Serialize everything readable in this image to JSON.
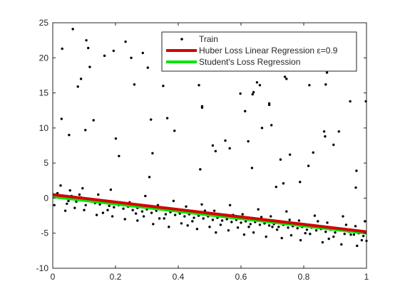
{
  "chart_data": {
    "type": "scatter",
    "title": "",
    "xlabel": "",
    "ylabel": "",
    "xlim": [
      0,
      1
    ],
    "ylim": [
      -10,
      25
    ],
    "xticks": [
      0,
      0.2,
      0.4,
      0.6,
      0.8,
      1
    ],
    "yticks": [
      -10,
      -5,
      0,
      5,
      10,
      15,
      20,
      25
    ],
    "xtick_labels": [
      "0",
      "0.2",
      "0.4",
      "0.6",
      "0.8",
      "1"
    ],
    "ytick_labels": [
      "-10",
      "-5",
      "0",
      "5",
      "10",
      "15",
      "20",
      "25"
    ],
    "grid": false,
    "legend_position": "top-right",
    "series": [
      {
        "name": "Train",
        "kind": "scatter",
        "color": "#000000",
        "x": [
          0.064,
          0.03,
          0.107,
          0.113,
          0.09,
          0.165,
          0.194,
          0.25,
          0.232,
          0.287,
          0.118,
          0.08,
          0.352,
          0.303,
          0.26,
          0.388,
          0.476,
          0.466,
          0.476,
          0.637,
          0.623,
          0.66,
          0.69,
          0.745,
          0.74,
          0.865,
          0.868,
          0.028,
          0.052,
          0.104,
          0.13,
          0.201,
          0.313,
          0.318,
          0.365,
          0.51,
          0.519,
          0.55,
          0.564,
          0.613,
          0.635,
          0.651,
          0.667,
          0.69,
          0.697,
          0.726,
          0.756,
          0.788,
          0.815,
          0.83,
          0.87,
          0.874,
          0.912,
          0.948,
          0.968,
          0.998,
          0.211,
          0.308,
          0.47,
          0.598,
          0.64,
          0.818,
          0.895,
          0.735,
          0.712,
          0.966,
          0.01,
          0.02,
          0.035,
          0.05,
          0.06,
          0.075,
          0.09,
          0.105,
          0.12,
          0.135,
          0.15,
          0.165,
          0.18,
          0.195,
          0.21,
          0.225,
          0.24,
          0.255,
          0.27,
          0.285,
          0.3,
          0.315,
          0.33,
          0.345,
          0.36,
          0.375,
          0.39,
          0.405,
          0.42,
          0.435,
          0.45,
          0.465,
          0.48,
          0.495,
          0.51,
          0.525,
          0.54,
          0.555,
          0.57,
          0.585,
          0.6,
          0.615,
          0.63,
          0.645,
          0.66,
          0.675,
          0.69,
          0.705,
          0.72,
          0.735,
          0.75,
          0.765,
          0.78,
          0.795,
          0.81,
          0.825,
          0.84,
          0.855,
          0.87,
          0.885,
          0.9,
          0.915,
          0.93,
          0.945,
          0.96,
          0.975,
          0.99,
          0.015,
          0.045,
          0.085,
          0.125,
          0.175,
          0.215,
          0.265,
          0.305,
          0.355,
          0.395,
          0.445,
          0.485,
          0.535,
          0.575,
          0.625,
          0.665,
          0.715,
          0.755,
          0.805,
          0.845,
          0.895,
          0.935,
          0.985,
          0.005,
          0.04,
          0.07,
          0.1,
          0.14,
          0.16,
          0.19,
          0.23,
          0.27,
          0.29,
          0.32,
          0.34,
          0.37,
          0.41,
          0.43,
          0.46,
          0.5,
          0.52,
          0.56,
          0.59,
          0.61,
          0.64,
          0.68,
          0.7,
          0.73,
          0.76,
          0.79,
          0.82,
          0.86,
          0.88,
          0.92,
          0.95,
          0.97,
          1.0,
          0.025,
          0.055,
          0.095,
          0.145,
          0.185,
          0.245,
          0.295,
          0.335,
          0.385,
          0.425,
          0.475,
          0.515,
          0.565,
          0.605,
          0.655,
          0.695,
          0.745,
          0.785,
          0.835,
          0.875,
          0.925,
          0.965,
          0.995
        ],
        "y": [
          24.1,
          21.3,
          22.5,
          21.4,
          17.0,
          20.3,
          21.0,
          20.0,
          22.3,
          20.7,
          18.7,
          15.9,
          16.0,
          18.6,
          16.2,
          9.6,
          13.1,
          16.1,
          12.9,
          14.8,
          8.1,
          16.1,
          13.3,
          17.0,
          17.3,
          9.5,
          8.8,
          11.3,
          9.0,
          9.7,
          11.1,
          8.5,
          11.2,
          6.4,
          11.4,
          7.5,
          6.7,
          8.2,
          7.1,
          12.4,
          4.3,
          16.5,
          10.0,
          13.5,
          10.4,
          5.5,
          6.2,
          2.3,
          4.6,
          6.5,
          16.2,
          17.9,
          9.5,
          13.8,
          3.9,
          13.8,
          6.0,
          3.0,
          4.1,
          14.9,
          15.1,
          16.1,
          7.6,
          2.1,
          1.6,
          1.5,
          0.5,
          0.2,
          0.0,
          -0.4,
          0.3,
          -0.5,
          0.1,
          -1.0,
          -0.2,
          -0.7,
          -0.9,
          -0.5,
          -1.1,
          -1.3,
          -1.0,
          -1.5,
          -1.2,
          -1.7,
          -1.4,
          -1.9,
          -1.6,
          -2.1,
          -1.8,
          -1.6,
          -2.3,
          -2.0,
          -2.4,
          -2.2,
          -2.6,
          -2.3,
          -2.8,
          -2.5,
          -2.9,
          -2.6,
          -3.1,
          -2.8,
          -3.2,
          -3.0,
          -3.4,
          -3.1,
          -3.5,
          -3.3,
          -3.7,
          -3.4,
          -3.8,
          -3.6,
          -3.9,
          -3.7,
          -4.1,
          -3.8,
          -4.2,
          -4.0,
          -4.3,
          -4.1,
          -4.5,
          -4.2,
          -4.6,
          -4.4,
          -4.8,
          -4.5,
          -4.9,
          -4.6,
          -5.1,
          -4.8,
          -5.2,
          -5.0,
          -5.4,
          0.7,
          -0.8,
          0.5,
          -0.5,
          -1.7,
          -0.6,
          -2.2,
          -1.1,
          -2.9,
          -1.6,
          -3.3,
          -1.8,
          -3.8,
          -2.4,
          -4.1,
          -2.7,
          -4.5,
          -3.1,
          -5.0,
          -3.3,
          -5.5,
          -3.8,
          -6.0,
          -1.0,
          -1.8,
          -1.4,
          -1.7,
          -2.4,
          -2.1,
          -2.6,
          -3.0,
          -3.2,
          -2.6,
          -3.7,
          -2.9,
          -4.1,
          -3.6,
          -3.9,
          -4.4,
          -4.1,
          -4.9,
          -4.6,
          -4.2,
          -5.2,
          -4.9,
          -5.5,
          -4.1,
          -5.7,
          -5.3,
          -6.0,
          -5.1,
          -6.3,
          -5.8,
          -6.6,
          -5.2,
          -6.8,
          -6.1,
          1.8,
          1.1,
          1.4,
          0.5,
          1.2,
          -0.6,
          0.3,
          -1.0,
          -0.4,
          -1.2,
          -0.9,
          -1.8,
          -1.0,
          -2.3,
          -1.6,
          -2.6,
          -1.9,
          -3.2,
          -2.5,
          -3.5,
          -2.6,
          -4.0,
          -3.3
        ]
      },
      {
        "name": "Huber Loss Linear Regression ε=0.9",
        "kind": "line",
        "color": "#d40000",
        "x": [
          0,
          1
        ],
        "y": [
          0.5,
          -4.8
        ]
      },
      {
        "name": "Student's Loss Regression",
        "kind": "line",
        "color": "#00e600",
        "x": [
          0,
          1
        ],
        "y": [
          0.2,
          -5.0
        ]
      }
    ]
  }
}
